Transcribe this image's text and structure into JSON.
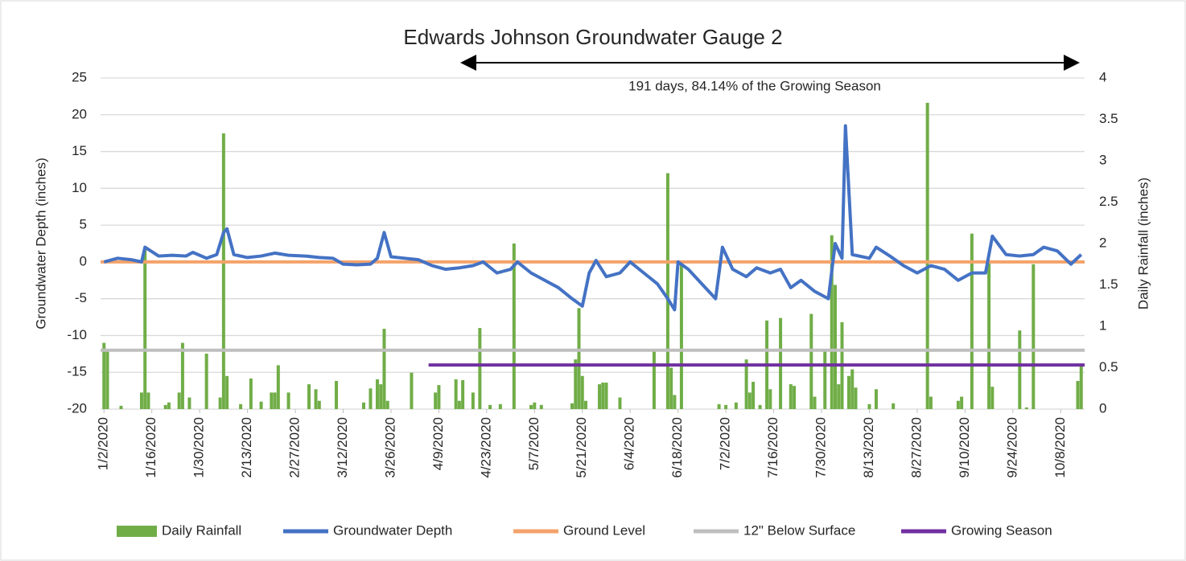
{
  "chart_data": {
    "type": "combo",
    "title": "Edwards Johnson Groundwater Gauge 2",
    "annotation": "191 days, 84.14% of the Growing Season",
    "ylabel": "Groundwater Depth (inches)",
    "y2label": "Daily Rainfall (inches)",
    "xlim": [
      "1/1/2020",
      "10/15/2020"
    ],
    "xticks": [
      "1/2/2020",
      "1/16/2020",
      "1/30/2020",
      "2/13/2020",
      "2/27/2020",
      "3/12/2020",
      "3/26/2020",
      "4/9/2020",
      "4/23/2020",
      "5/7/2020",
      "5/21/2020",
      "6/4/2020",
      "6/18/2020",
      "7/2/2020",
      "7/16/2020",
      "7/30/2020",
      "8/13/2020",
      "8/27/2020",
      "9/10/2020",
      "9/24/2020",
      "10/8/2020"
    ],
    "ylim": [
      -20,
      25
    ],
    "yticks": [
      -20,
      -15,
      -10,
      -5,
      0,
      5,
      10,
      15,
      20,
      25
    ],
    "y2lim": [
      0,
      4
    ],
    "y2ticks": [
      0,
      0.5,
      1,
      1.5,
      2,
      2.5,
      3,
      3.5,
      4
    ],
    "grid": true,
    "legend": "bottom",
    "series": [
      {
        "name": "Daily Rainfall",
        "type": "bar",
        "axis": "y2",
        "color": "#70ad47",
        "x": [
          "1/2/2020",
          "1/3/2020",
          "1/7/2020",
          "1/13/2020",
          "1/14/2020",
          "1/15/2020",
          "1/20/2020",
          "1/21/2020",
          "1/24/2020",
          "1/25/2020",
          "1/27/2020",
          "2/1/2020",
          "2/5/2020",
          "2/6/2020",
          "2/7/2020",
          "2/11/2020",
          "2/14/2020",
          "2/17/2020",
          "2/20/2020",
          "2/21/2020",
          "2/22/2020",
          "2/25/2020",
          "3/2/2020",
          "3/4/2020",
          "3/5/2020",
          "3/10/2020",
          "3/18/2020",
          "3/20/2020",
          "3/22/2020",
          "3/23/2020",
          "3/24/2020",
          "3/25/2020",
          "4/1/2020",
          "4/8/2020",
          "4/9/2020",
          "4/14/2020",
          "4/15/2020",
          "4/16/2020",
          "4/19/2020",
          "4/21/2020",
          "4/24/2020",
          "4/27/2020",
          "5/1/2020",
          "5/6/2020",
          "5/7/2020",
          "5/9/2020",
          "5/18/2020",
          "5/19/2020",
          "5/20/2020",
          "5/21/2020",
          "5/22/2020",
          "5/26/2020",
          "5/27/2020",
          "5/28/2020",
          "6/1/2020",
          "6/11/2020",
          "6/15/2020",
          "6/16/2020",
          "6/17/2020",
          "6/19/2020",
          "6/30/2020",
          "7/2/2020",
          "7/5/2020",
          "7/8/2020",
          "7/9/2020",
          "7/10/2020",
          "7/12/2020",
          "7/14/2020",
          "7/15/2020",
          "7/18/2020",
          "7/21/2020",
          "7/22/2020",
          "7/27/2020",
          "7/28/2020",
          "7/31/2020",
          "8/2/2020",
          "8/3/2020",
          "8/4/2020",
          "8/5/2020",
          "8/7/2020",
          "8/8/2020",
          "8/9/2020",
          "8/13/2020",
          "8/15/2020",
          "8/20/2020",
          "8/30/2020",
          "8/31/2020",
          "9/8/2020",
          "9/9/2020",
          "9/12/2020",
          "9/17/2020",
          "9/18/2020",
          "9/26/2020",
          "9/28/2020",
          "9/30/2020",
          "10/13/2020",
          "10/14/2020"
        ],
        "values": [
          0.8,
          0.7,
          0.04,
          0.2,
          1.95,
          0.2,
          0.05,
          0.08,
          0.2,
          0.8,
          0.14,
          0.67,
          0.14,
          3.33,
          0.4,
          0.06,
          0.37,
          0.09,
          0.2,
          0.2,
          0.53,
          0.2,
          0.3,
          0.24,
          0.1,
          0.34,
          0.08,
          0.25,
          0.36,
          0.3,
          0.97,
          0.1,
          0.44,
          0.2,
          0.29,
          0.36,
          0.1,
          0.35,
          0.2,
          0.98,
          0.05,
          0.06,
          2.0,
          0.05,
          0.08,
          0.05,
          0.07,
          0.6,
          1.22,
          0.4,
          0.1,
          0.3,
          0.32,
          0.32,
          0.14,
          0.7,
          2.85,
          0.5,
          0.17,
          1.78,
          0.06,
          0.05,
          0.08,
          0.6,
          0.2,
          0.33,
          0.05,
          1.07,
          0.24,
          1.1,
          0.3,
          0.28,
          1.15,
          0.15,
          0.7,
          2.1,
          1.5,
          0.3,
          1.05,
          0.4,
          0.48,
          0.26,
          0.06,
          0.24,
          0.07,
          3.7,
          0.15,
          0.1,
          0.15,
          2.12,
          1.8,
          0.27,
          0.95,
          0.02,
          1.75,
          0.34,
          0.55
        ]
      },
      {
        "name": "Groundwater Depth",
        "type": "line",
        "axis": "y",
        "color": "#4472c4",
        "width": 4,
        "x": [
          "1/2/2020",
          "1/6/2020",
          "1/10/2020",
          "1/13/2020",
          "1/14/2020",
          "1/18/2020",
          "1/22/2020",
          "1/26/2020",
          "1/28/2020",
          "2/1/2020",
          "2/4/2020",
          "2/6/2020",
          "2/7/2020",
          "2/9/2020",
          "2/13/2020",
          "2/17/2020",
          "2/21/2020",
          "2/25/2020",
          "3/1/2020",
          "3/5/2020",
          "3/9/2020",
          "3/12/2020",
          "3/16/2020",
          "3/20/2020",
          "3/22/2020",
          "3/24/2020",
          "3/26/2020",
          "3/30/2020",
          "4/3/2020",
          "4/7/2020",
          "4/11/2020",
          "4/15/2020",
          "4/19/2020",
          "4/22/2020",
          "4/26/2020",
          "4/30/2020",
          "5/2/2020",
          "5/6/2020",
          "5/10/2020",
          "5/14/2020",
          "5/18/2020",
          "5/21/2020",
          "5/23/2020",
          "5/25/2020",
          "5/28/2020",
          "6/1/2020",
          "6/4/2020",
          "6/8/2020",
          "6/12/2020",
          "6/15/2020",
          "6/17/2020",
          "6/18/2020",
          "6/21/2020",
          "6/25/2020",
          "6/29/2020",
          "7/1/2020",
          "7/4/2020",
          "7/8/2020",
          "7/11/2020",
          "7/15/2020",
          "7/18/2020",
          "7/21/2020",
          "7/24/2020",
          "7/28/2020",
          "8/1/2020",
          "8/3/2020",
          "8/5/2020",
          "8/6/2020",
          "8/8/2020",
          "8/13/2020",
          "8/15/2020",
          "8/19/2020",
          "8/23/2020",
          "8/27/2020",
          "8/31/2020",
          "9/4/2020",
          "9/8/2020",
          "9/12/2020",
          "9/16/2020",
          "9/18/2020",
          "9/22/2020",
          "9/26/2020",
          "9/30/2020",
          "10/3/2020",
          "10/7/2020",
          "10/11/2020",
          "10/14/2020"
        ],
        "values": [
          0,
          0.5,
          0.3,
          0,
          2,
          0.8,
          0.9,
          0.8,
          1.3,
          0.5,
          1,
          4,
          4.5,
          1,
          0.6,
          0.8,
          1.2,
          0.9,
          0.8,
          0.6,
          0.5,
          -0.3,
          -0.4,
          -0.3,
          0.5,
          4,
          0.7,
          0.5,
          0.3,
          -0.5,
          -1,
          -0.8,
          -0.5,
          0,
          -1.5,
          -1,
          0,
          -1.5,
          -2.5,
          -3.5,
          -5,
          -6,
          -1.5,
          0.2,
          -2,
          -1.5,
          0,
          -1.5,
          -3,
          -5,
          -6.5,
          0,
          -1,
          -3,
          -5,
          2,
          -1,
          -2,
          -0.8,
          -1.5,
          -1,
          -3.5,
          -2.5,
          -4,
          -5,
          2.5,
          0.5,
          18.5,
          1,
          0.5,
          2,
          0.8,
          -0.5,
          -1.5,
          -0.5,
          -1,
          -2.5,
          -1.5,
          -1.5,
          3.5,
          1,
          0.8,
          1,
          2,
          1.5,
          -0.3,
          1
        ]
      },
      {
        "name": "Ground Level",
        "type": "line",
        "axis": "y",
        "color": "#f4a26a",
        "width": 4,
        "x": [
          "1/1/2020",
          "10/15/2020"
        ],
        "values": [
          0,
          0
        ]
      },
      {
        "name": "12\" Below Surface",
        "type": "line",
        "axis": "y",
        "color": "#bfbfbf",
        "width": 4,
        "x": [
          "1/1/2020",
          "10/15/2020"
        ],
        "values": [
          -12,
          -12
        ]
      },
      {
        "name": "Growing Season",
        "type": "line",
        "axis": "y",
        "color": "#7030a0",
        "width": 4,
        "x": [
          "4/6/2020",
          "10/15/2020"
        ],
        "values": [
          -14,
          -14
        ]
      }
    ]
  }
}
